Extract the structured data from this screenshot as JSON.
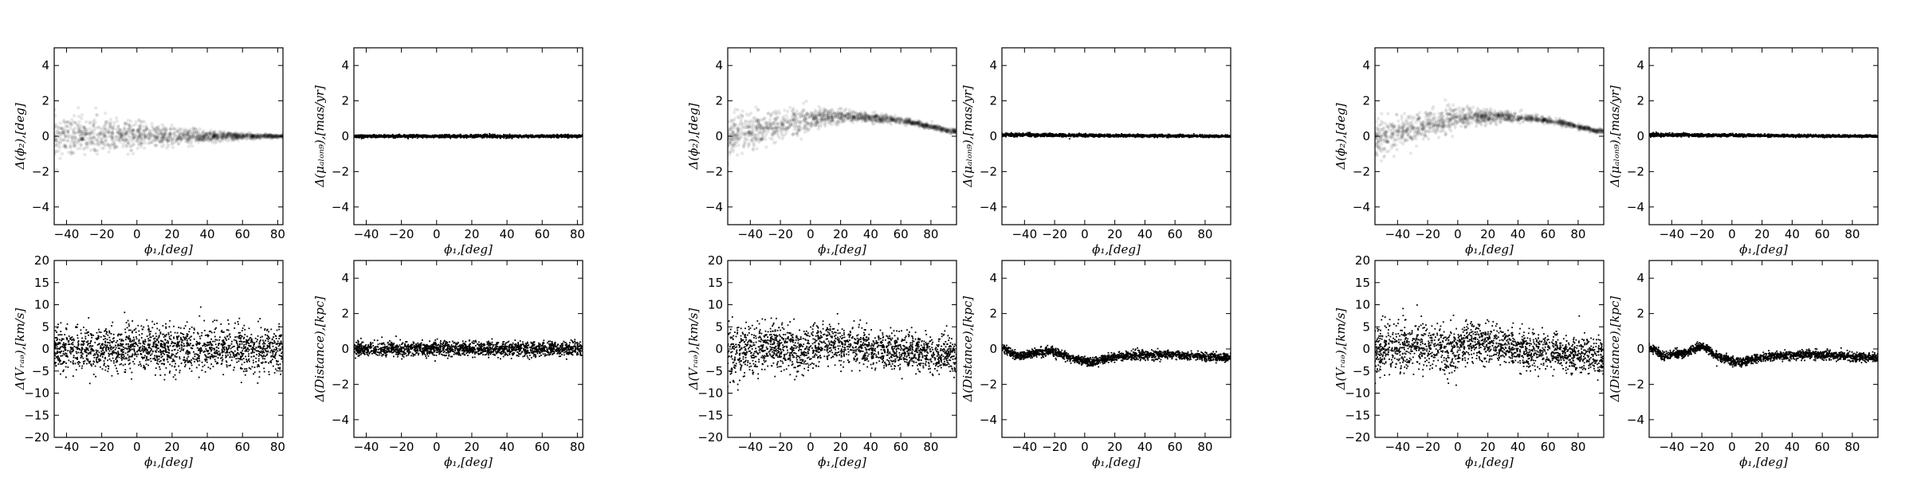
{
  "chart_data": [
    {
      "type": "scatter",
      "panel_group": 1,
      "position": "top-left",
      "xlim": [
        -47,
        83
      ],
      "ylim": [
        -5,
        5
      ],
      "xticks": [
        -40,
        -20,
        0,
        20,
        40,
        60,
        80
      ],
      "yticks": [
        -4,
        -2,
        0,
        2,
        4
      ],
      "xlabel": "ϕ₁,[deg]",
      "ylabel": "Δ(ϕ₂),[deg]",
      "model": {
        "x": [
          -47,
          -20,
          0,
          20,
          40,
          60,
          83
        ],
        "y": [
          0,
          0,
          0,
          0,
          0,
          0,
          0
        ]
      },
      "spread": [
        0.55,
        0.5,
        0.4,
        0.25,
        0.15,
        0.08,
        0.04
      ],
      "style": "density"
    },
    {
      "type": "scatter",
      "panel_group": 1,
      "position": "top-right",
      "xlim": [
        -47,
        83
      ],
      "ylim": [
        -5,
        5
      ],
      "xticks": [
        -40,
        -20,
        0,
        20,
        40,
        60,
        80
      ],
      "yticks": [
        -4,
        -2,
        0,
        2,
        4
      ],
      "xlabel": "ϕ₁,[deg]",
      "ylabel": "Δ(μₐₗₒₙ₉),[mas/yr]",
      "model": {
        "x": [
          -47,
          0,
          83
        ],
        "y": [
          0,
          0,
          0
        ]
      },
      "spread": [
        0.04,
        0.04,
        0.04
      ],
      "style": "points"
    },
    {
      "type": "scatter",
      "panel_group": 1,
      "position": "bottom-left",
      "xlim": [
        -47,
        83
      ],
      "ylim": [
        -20,
        20
      ],
      "xticks": [
        -40,
        -20,
        0,
        20,
        40,
        60,
        80
      ],
      "yticks": [
        -20,
        -15,
        -10,
        -5,
        0,
        5,
        10,
        15,
        20
      ],
      "xlabel": "ϕ₁,[deg]",
      "ylabel": "Δ(Vᵣₐₔ),[km/s]",
      "model": {
        "x": [
          -47,
          0,
          83
        ],
        "y": [
          0,
          0,
          0
        ]
      },
      "spread": [
        2.5,
        2.5,
        2.5
      ],
      "style": "points"
    },
    {
      "type": "scatter",
      "panel_group": 1,
      "position": "bottom-right",
      "xlim": [
        -47,
        83
      ],
      "ylim": [
        -5,
        5
      ],
      "xticks": [
        -40,
        -20,
        0,
        20,
        40,
        60,
        80
      ],
      "yticks": [
        -4,
        -2,
        0,
        2,
        4
      ],
      "xlabel": "ϕ₁,[deg]",
      "ylabel": "Δ(Distance),[kpc]",
      "model": {
        "x": [
          -47,
          0,
          83
        ],
        "y": [
          0,
          0,
          0
        ]
      },
      "spread": [
        0.2,
        0.2,
        0.2
      ],
      "style": "points"
    },
    {
      "type": "scatter",
      "panel_group": 2,
      "position": "top-left",
      "xlim": [
        -55,
        97
      ],
      "ylim": [
        -5,
        5
      ],
      "xticks": [
        -40,
        -20,
        0,
        20,
        40,
        60,
        80
      ],
      "yticks": [
        -4,
        -2,
        0,
        2,
        4
      ],
      "xlabel": "ϕ₁,[deg]",
      "ylabel": "Δ(ϕ₂),[deg]",
      "model": {
        "x": [
          -55,
          -30,
          -5,
          15,
          30,
          50,
          70,
          92
        ],
        "y": [
          -0.2,
          0.5,
          0.9,
          1.1,
          1.1,
          1.0,
          0.75,
          0.3
        ]
      },
      "spread": [
        0.6,
        0.45,
        0.35,
        0.2,
        0.15,
        0.1,
        0.08,
        0.06
      ],
      "style": "density"
    },
    {
      "type": "scatter",
      "panel_group": 2,
      "position": "top-right",
      "xlim": [
        -55,
        97
      ],
      "ylim": [
        -5,
        5
      ],
      "xticks": [
        -40,
        -20,
        0,
        20,
        40,
        60,
        80
      ],
      "yticks": [
        -4,
        -2,
        0,
        2,
        4
      ],
      "xlabel": "ϕ₁,[deg]",
      "ylabel": "Δ(μₐₗₒₙ₉),[mas/yr]",
      "model": {
        "x": [
          -55,
          0,
          95
        ],
        "y": [
          0.08,
          0.05,
          0.0
        ]
      },
      "spread": [
        0.05,
        0.04,
        0.03
      ],
      "style": "points"
    },
    {
      "type": "scatter",
      "panel_group": 2,
      "position": "bottom-left",
      "xlim": [
        -55,
        97
      ],
      "ylim": [
        -20,
        20
      ],
      "xticks": [
        -40,
        -20,
        0,
        20,
        40,
        60,
        80
      ],
      "yticks": [
        -20,
        -15,
        -10,
        -5,
        0,
        5,
        10,
        15,
        20
      ],
      "xlabel": "ϕ₁,[deg]",
      "ylabel": "Δ(Vᵣₐₔ),[km/s]",
      "model": {
        "x": [
          -55,
          -25,
          -5,
          10,
          40,
          94
        ],
        "y": [
          -1.0,
          1.0,
          -0.5,
          1.5,
          0.0,
          -1.5
        ]
      },
      "spread": [
        3.0,
        2.5,
        2.5,
        2.2,
        2.0,
        2.0
      ],
      "style": "points"
    },
    {
      "type": "scatter",
      "panel_group": 2,
      "position": "bottom-right",
      "xlim": [
        -55,
        97
      ],
      "ylim": [
        -5,
        5
      ],
      "xticks": [
        -40,
        -20,
        0,
        20,
        40,
        60,
        80
      ],
      "yticks": [
        -4,
        -2,
        0,
        2,
        4
      ],
      "xlabel": "ϕ₁,[deg]",
      "ylabel": "Δ(Distance),[kpc]",
      "model": {
        "x": [
          -55,
          -45,
          -30,
          -22,
          -10,
          0,
          4,
          20,
          40,
          55,
          70,
          94
        ],
        "y": [
          0.1,
          -0.4,
          -0.2,
          -0.1,
          -0.5,
          -0.7,
          -0.75,
          -0.45,
          -0.35,
          -0.3,
          -0.4,
          -0.5
        ]
      },
      "spread": [
        0.12,
        0.12,
        0.12,
        0.12,
        0.12,
        0.12,
        0.12,
        0.12,
        0.12,
        0.12,
        0.12,
        0.12
      ],
      "style": "points"
    },
    {
      "type": "scatter",
      "panel_group": 3,
      "position": "top-left",
      "xlim": [
        -55,
        97
      ],
      "ylim": [
        -5,
        5
      ],
      "xticks": [
        -40,
        -20,
        0,
        20,
        40,
        60,
        80
      ],
      "yticks": [
        -4,
        -2,
        0,
        2,
        4
      ],
      "xlabel": "ϕ₁,[deg]",
      "ylabel": "Δ(ϕ₂),[deg]",
      "model": {
        "x": [
          -55,
          -30,
          -5,
          15,
          30,
          50,
          70,
          92
        ],
        "y": [
          -0.2,
          0.5,
          0.9,
          1.1,
          1.1,
          1.0,
          0.75,
          0.3
        ]
      },
      "spread": [
        0.6,
        0.45,
        0.35,
        0.2,
        0.15,
        0.1,
        0.08,
        0.06
      ],
      "style": "density"
    },
    {
      "type": "scatter",
      "panel_group": 3,
      "position": "top-right",
      "xlim": [
        -55,
        97
      ],
      "ylim": [
        -5,
        5
      ],
      "xticks": [
        -40,
        -20,
        0,
        20,
        40,
        60,
        80
      ],
      "yticks": [
        -4,
        -2,
        0,
        2,
        4
      ],
      "xlabel": "ϕ₁,[deg]",
      "ylabel": "Δ(μₐₗₒₙ₉),[mas/yr]",
      "model": {
        "x": [
          -55,
          0,
          95
        ],
        "y": [
          0.08,
          0.05,
          0.0
        ]
      },
      "spread": [
        0.05,
        0.04,
        0.03
      ],
      "style": "points"
    },
    {
      "type": "scatter",
      "panel_group": 3,
      "position": "bottom-left",
      "xlim": [
        -55,
        97
      ],
      "ylim": [
        -20,
        20
      ],
      "xticks": [
        -40,
        -20,
        0,
        20,
        40,
        60,
        80
      ],
      "yticks": [
        -20,
        -15,
        -10,
        -5,
        0,
        5,
        10,
        15,
        20
      ],
      "xlabel": "ϕ₁,[deg]",
      "ylabel": "Δ(Vᵣₐₔ),[km/s]",
      "model": {
        "x": [
          -55,
          -25,
          -5,
          10,
          40,
          94
        ],
        "y": [
          -1.0,
          1.0,
          -0.5,
          1.5,
          0.0,
          -1.5
        ]
      },
      "spread": [
        3.0,
        2.5,
        2.5,
        2.2,
        2.0,
        2.0
      ],
      "style": "points"
    },
    {
      "type": "scatter",
      "panel_group": 3,
      "position": "bottom-right",
      "xlim": [
        -55,
        97
      ],
      "ylim": [
        -5,
        5
      ],
      "xticks": [
        -40,
        -20,
        0,
        20,
        40,
        60,
        80
      ],
      "yticks": [
        -4,
        -2,
        0,
        2,
        4
      ],
      "xlabel": "ϕ₁,[deg]",
      "ylabel": "Δ(Distance),[kpc]",
      "model": {
        "x": [
          -55,
          -45,
          -30,
          -20,
          -10,
          0,
          5,
          20,
          40,
          55,
          70,
          94
        ],
        "y": [
          0.1,
          -0.4,
          -0.2,
          0.2,
          -0.4,
          -0.7,
          -0.75,
          -0.45,
          -0.35,
          -0.3,
          -0.4,
          -0.5
        ]
      },
      "spread": [
        0.12,
        0.12,
        0.12,
        0.12,
        0.12,
        0.12,
        0.12,
        0.12,
        0.12,
        0.12,
        0.12,
        0.12
      ],
      "style": "points"
    }
  ]
}
